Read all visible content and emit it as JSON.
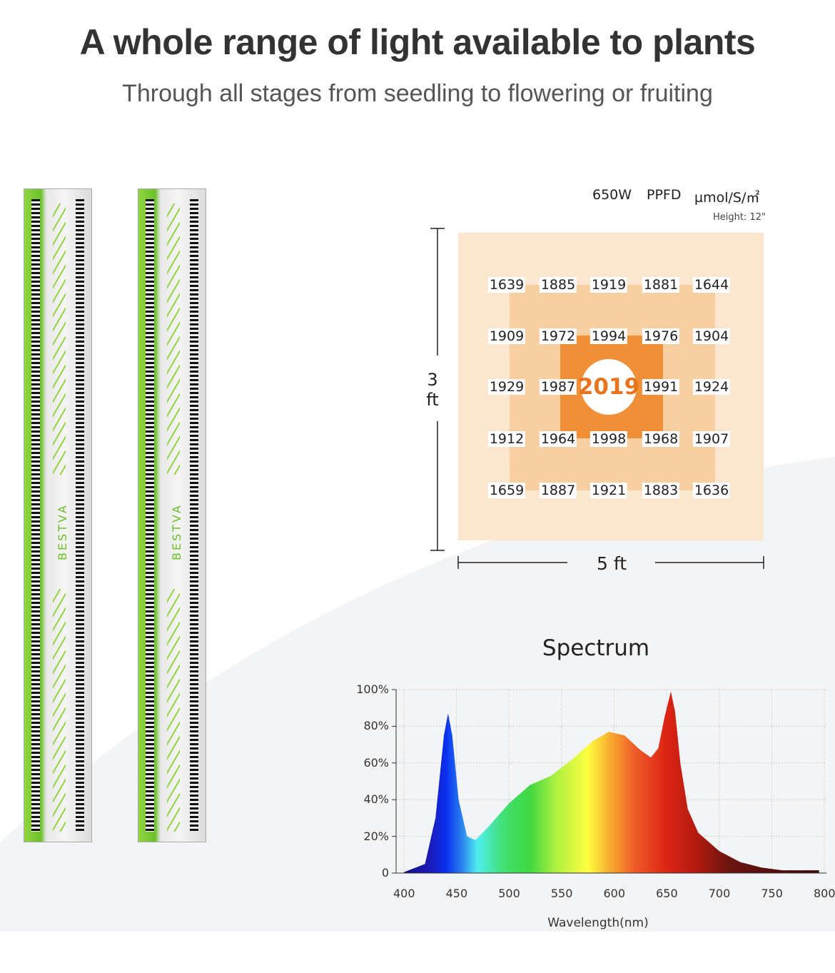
{
  "header": {
    "title": "A whole range of light available to plants",
    "subtitle": "Through all stages from seedling to flowering or fruiting"
  },
  "product": {
    "brand": "BESTVA"
  },
  "ppfd": {
    "power": "650W",
    "metric": "PPFD",
    "unit": "µmol/S/㎡",
    "height": "Height: 12\"",
    "dim_y": "3 ft",
    "dim_x": "5 ft",
    "center": "2019",
    "grid": [
      [
        "1639",
        "1885",
        "1919",
        "1881",
        "1644"
      ],
      [
        "1909",
        "1972",
        "1994",
        "1976",
        "1904"
      ],
      [
        "1929",
        "1987",
        "2019",
        "1991",
        "1924"
      ],
      [
        "1912",
        "1964",
        "1998",
        "1968",
        "1907"
      ],
      [
        "1659",
        "1887",
        "1921",
        "1883",
        "1636"
      ]
    ]
  },
  "chart_data": {
    "type": "area",
    "title": "Spectrum",
    "xlabel": "Wavelength(nm)",
    "ylabel": "",
    "xlim": [
      400,
      800
    ],
    "ylim": [
      0,
      100
    ],
    "xticks": [
      "400",
      "450",
      "500",
      "550",
      "600",
      "650",
      "700",
      "750",
      "800"
    ],
    "yticks": [
      "0",
      "20%",
      "40%",
      "60%",
      "80%",
      "100%"
    ],
    "grid": true,
    "x": [
      400,
      420,
      430,
      438,
      442,
      446,
      452,
      460,
      468,
      480,
      500,
      520,
      540,
      560,
      580,
      595,
      610,
      625,
      635,
      642,
      648,
      654,
      658,
      663,
      670,
      680,
      700,
      720,
      740,
      760,
      795
    ],
    "y": [
      0.5,
      5,
      30,
      75,
      87,
      75,
      40,
      20,
      18,
      25,
      38,
      48,
      53,
      62,
      72,
      77,
      75,
      67,
      63,
      68,
      85,
      99,
      88,
      60,
      35,
      22,
      12,
      6,
      3,
      1.5,
      1.5
    ]
  }
}
